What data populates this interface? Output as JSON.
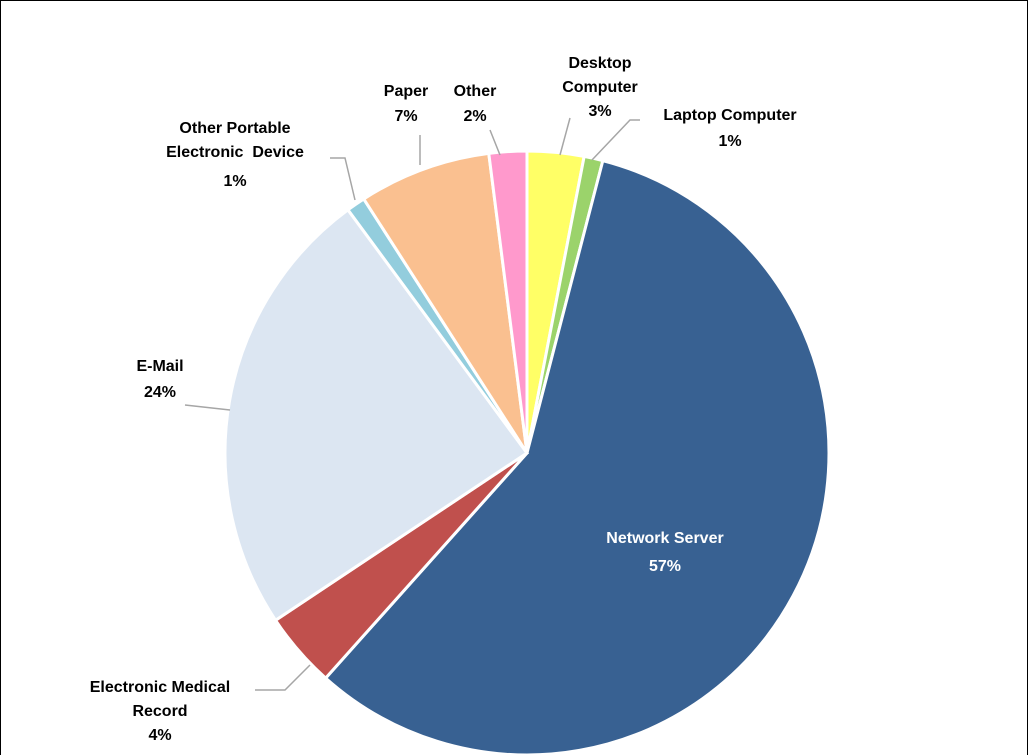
{
  "chart_data": {
    "type": "pie",
    "categories": [
      "Desktop Computer",
      "Laptop Computer",
      "Network Server",
      "Electronic Medical Record",
      "E-Mail",
      "Other Portable Electronic  Device",
      "Paper",
      "Other"
    ],
    "values": [
      3,
      1,
      57,
      4,
      24,
      1,
      7,
      2
    ],
    "value_labels": [
      "3%",
      "1%",
      "57%",
      "4%",
      "24%",
      "1%",
      "7%",
      "2%"
    ],
    "colors": [
      "#ffff66",
      "#9bd36b",
      "#386192",
      "#c0504d",
      "#dce6f2",
      "#93cddd",
      "#fac090",
      "#ff99cc"
    ]
  }
}
